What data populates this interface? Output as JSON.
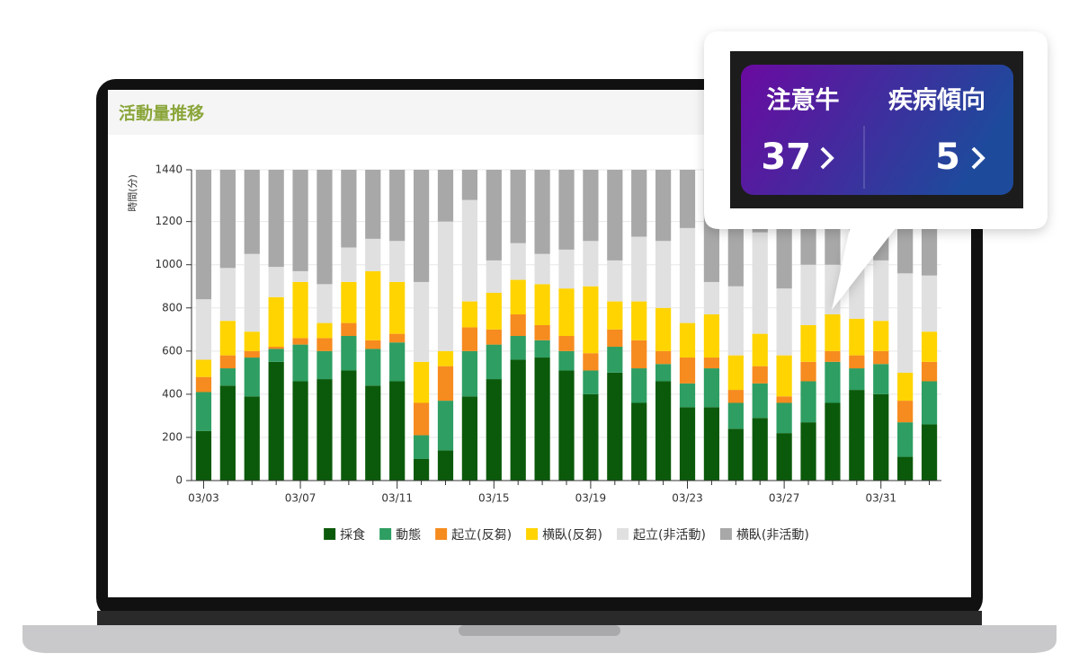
{
  "panel": {
    "title": "活動量推移"
  },
  "callout": {
    "items": [
      {
        "label": "注意牛",
        "value": 37
      },
      {
        "label": "疾病傾向",
        "value": 5
      }
    ]
  },
  "chart_data": {
    "type": "bar",
    "stacked": true,
    "y_label": "時間(分)",
    "categories": [
      "03/03",
      null,
      null,
      null,
      "03/07",
      null,
      null,
      null,
      "03/11",
      null,
      null,
      null,
      "03/15",
      null,
      null,
      null,
      "03/19",
      null,
      null,
      null,
      "03/23",
      null,
      null,
      null,
      "03/27",
      null,
      null,
      null,
      "03/31",
      null,
      null
    ],
    "series": [
      {
        "name": "採食",
        "color": "#0b5a0b",
        "values": [
          230,
          440,
          390,
          550,
          460,
          470,
          510,
          440,
          460,
          100,
          140,
          390,
          470,
          560,
          570,
          510,
          400,
          500,
          360,
          460,
          340,
          340,
          240,
          290,
          220,
          270,
          360,
          420,
          400,
          110,
          260
        ]
      },
      {
        "name": "動態",
        "color": "#2e9e62",
        "values": [
          180,
          80,
          180,
          60,
          170,
          130,
          160,
          170,
          180,
          110,
          230,
          210,
          160,
          110,
          80,
          90,
          110,
          120,
          160,
          80,
          110,
          180,
          120,
          160,
          140,
          190,
          190,
          100,
          140,
          160,
          200
        ]
      },
      {
        "name": "起立(反芻)",
        "color": "#f68b1f",
        "values": [
          70,
          60,
          30,
          10,
          30,
          60,
          60,
          40,
          40,
          150,
          160,
          110,
          70,
          100,
          70,
          70,
          80,
          80,
          130,
          60,
          120,
          50,
          60,
          80,
          30,
          90,
          50,
          60,
          60,
          100,
          90
        ]
      },
      {
        "name": "横臥(反芻)",
        "color": "#ffd400",
        "values": [
          80,
          160,
          90,
          230,
          260,
          70,
          190,
          320,
          240,
          190,
          70,
          120,
          170,
          160,
          190,
          220,
          310,
          130,
          180,
          200,
          160,
          200,
          160,
          150,
          190,
          170,
          170,
          170,
          140,
          130,
          140
        ]
      },
      {
        "name": "起立(非活動)",
        "color": "#e0e0e0",
        "values": [
          280,
          245,
          360,
          140,
          50,
          180,
          160,
          150,
          190,
          370,
          600,
          470,
          150,
          170,
          140,
          180,
          210,
          190,
          300,
          310,
          440,
          150,
          320,
          470,
          310,
          280,
          230,
          270,
          280,
          460,
          260
        ]
      },
      {
        "name": "横臥(非活動)",
        "color": "#a8a8a8",
        "values": [
          600,
          455,
          390,
          450,
          470,
          530,
          360,
          320,
          330,
          520,
          240,
          140,
          420,
          340,
          390,
          370,
          330,
          420,
          310,
          330,
          270,
          520,
          540,
          290,
          550,
          440,
          440,
          420,
          420,
          480,
          490
        ]
      }
    ],
    "ylim": [
      0,
      1440
    ],
    "yticks": [
      0,
      200,
      400,
      600,
      800,
      1000,
      1200,
      1440
    ],
    "grid": true
  }
}
